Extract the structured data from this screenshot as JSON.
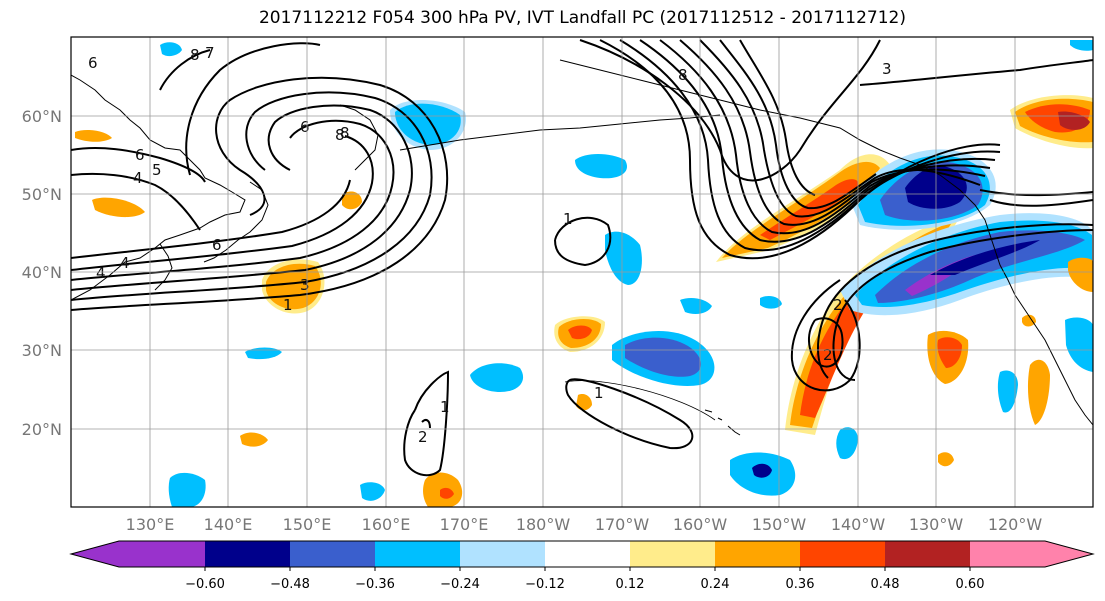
{
  "title": "2017112212 F054 300 hPa PV, IVT Landfall PC (2017112512 - 2017112712)",
  "lat_labels": [
    "60°N",
    "50°N",
    "40°N",
    "30°N",
    "20°N"
  ],
  "lon_labels": [
    "130°E",
    "140°E",
    "150°E",
    "160°E",
    "170°E",
    "180°W",
    "170°W",
    "160°W",
    "150°W",
    "140°W",
    "130°W",
    "120°W"
  ],
  "colorbar": {
    "colors": [
      "#9932cc",
      "#00008b",
      "#3a5fcd",
      "#00bfff",
      "#b0e2ff",
      "#ffffff",
      "#ffec8b",
      "#ffa500",
      "#ff4500",
      "#b22222",
      "#ff82ab"
    ],
    "tick_labels": [
      "−0.60",
      "−0.48",
      "−0.36",
      "−0.24",
      "−0.12",
      "0.12",
      "0.24",
      "0.36",
      "0.48",
      "0.60"
    ]
  },
  "contour_labels": [
    "6",
    "8",
    "7",
    "8",
    "6",
    "5",
    "4",
    "6",
    "4",
    "3",
    "1",
    "8",
    "3",
    "1",
    "1",
    "2",
    "2",
    "1",
    "2",
    "4",
    "6",
    "8"
  ]
}
